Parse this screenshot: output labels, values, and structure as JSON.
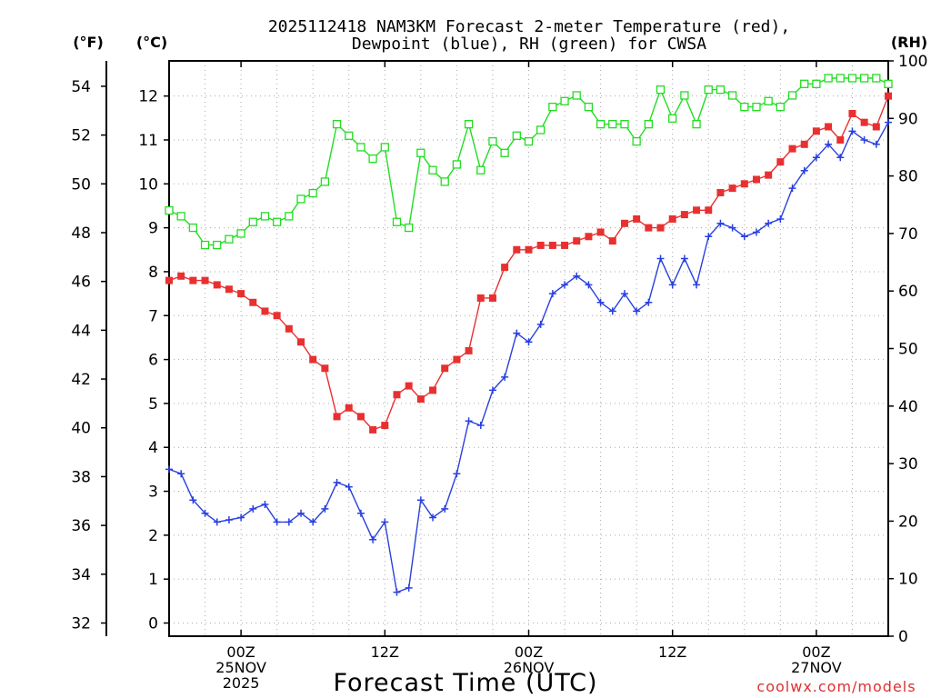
{
  "chart_data": {
    "type": "line",
    "title_line1": "2025112418 NAM3KM Forecast 2-meter Temperature (red),",
    "title_line2": "Dewpoint (blue), RH (green) for CWSA",
    "xlabel": "Forecast Time (UTC)",
    "watermark": "coolwx.com/models",
    "axis_units": {
      "fahrenheit": "(°F)",
      "celsius": "(°C)",
      "rh": "(RH)"
    },
    "x_range_hours": [
      0,
      60
    ],
    "x_ticks": [
      {
        "hour": 6,
        "line1": "00Z",
        "line2": "25NOV",
        "line3": "2025"
      },
      {
        "hour": 18,
        "line1": "12Z",
        "line2": "",
        "line3": ""
      },
      {
        "hour": 30,
        "line1": "00Z",
        "line2": "26NOV",
        "line3": ""
      },
      {
        "hour": 42,
        "line1": "12Z",
        "line2": "",
        "line3": ""
      },
      {
        "hour": 54,
        "line1": "00Z",
        "line2": "27NOV",
        "line3": ""
      }
    ],
    "left_axis_c": {
      "range": [
        -0.3,
        12.8
      ],
      "ticks": [
        0,
        1,
        2,
        3,
        4,
        5,
        6,
        7,
        8,
        9,
        10,
        11,
        12
      ]
    },
    "left_axis_f": {
      "ticks": [
        32,
        34,
        36,
        38,
        40,
        42,
        44,
        46,
        48,
        50,
        52,
        54
      ]
    },
    "right_axis_rh": {
      "range": [
        0,
        100
      ],
      "ticks": [
        0,
        10,
        20,
        30,
        40,
        50,
        60,
        70,
        80,
        90,
        100
      ]
    },
    "grid": true,
    "series": [
      {
        "name": "Temperature",
        "axis": "celsius",
        "color": "#e83030",
        "marker": "filled-square",
        "values": [
          7.8,
          7.9,
          7.8,
          7.8,
          7.7,
          7.6,
          7.5,
          7.3,
          7.1,
          7.0,
          6.7,
          6.4,
          6.0,
          5.8,
          4.7,
          4.9,
          4.7,
          4.4,
          4.5,
          5.2,
          5.4,
          5.1,
          5.3,
          5.8,
          6.0,
          6.2,
          7.4,
          7.4,
          8.1,
          8.5,
          8.5,
          8.6,
          8.6,
          8.6,
          8.7,
          8.8,
          8.9,
          8.7,
          9.1,
          9.2,
          9.0,
          9.0,
          9.2,
          9.3,
          9.4,
          9.4,
          9.8,
          9.9,
          10.0,
          10.1,
          10.2,
          10.5,
          10.8,
          10.9,
          11.2,
          11.3,
          11.0,
          11.6,
          11.4,
          11.3,
          12.0
        ]
      },
      {
        "name": "Dewpoint",
        "axis": "celsius",
        "color": "#2a40e0",
        "marker": "plus",
        "values": [
          3.5,
          3.4,
          2.8,
          2.5,
          2.3,
          2.35,
          2.4,
          2.6,
          2.7,
          2.3,
          2.3,
          2.5,
          2.3,
          2.6,
          3.2,
          3.1,
          2.5,
          1.9,
          2.3,
          0.7,
          0.8,
          2.8,
          2.4,
          2.6,
          3.4,
          4.6,
          4.5,
          5.3,
          5.6,
          6.6,
          6.4,
          6.8,
          7.5,
          7.7,
          7.9,
          7.7,
          7.3,
          7.1,
          7.5,
          7.1,
          7.3,
          8.3,
          7.7,
          8.3,
          7.7,
          8.8,
          9.1,
          9.0,
          8.8,
          8.9,
          9.1,
          9.2,
          9.9,
          10.3,
          10.6,
          10.9,
          10.6,
          11.2,
          11.0,
          10.9,
          11.4
        ]
      },
      {
        "name": "RH",
        "axis": "rh",
        "color": "#22dd22",
        "marker": "open-square",
        "values": [
          74,
          73,
          71,
          68,
          68,
          69,
          70,
          72,
          73,
          72,
          73,
          76,
          77,
          79,
          89,
          87,
          85,
          83,
          85,
          72,
          71,
          84,
          81,
          79,
          82,
          89,
          81,
          86,
          84,
          87,
          86,
          88,
          92,
          93,
          94,
          92,
          89,
          89,
          89,
          86,
          89,
          95,
          90,
          94,
          89,
          95,
          95,
          94,
          92,
          92,
          93,
          92,
          94,
          96,
          96,
          97,
          97,
          97,
          97,
          97,
          96
        ]
      }
    ]
  }
}
